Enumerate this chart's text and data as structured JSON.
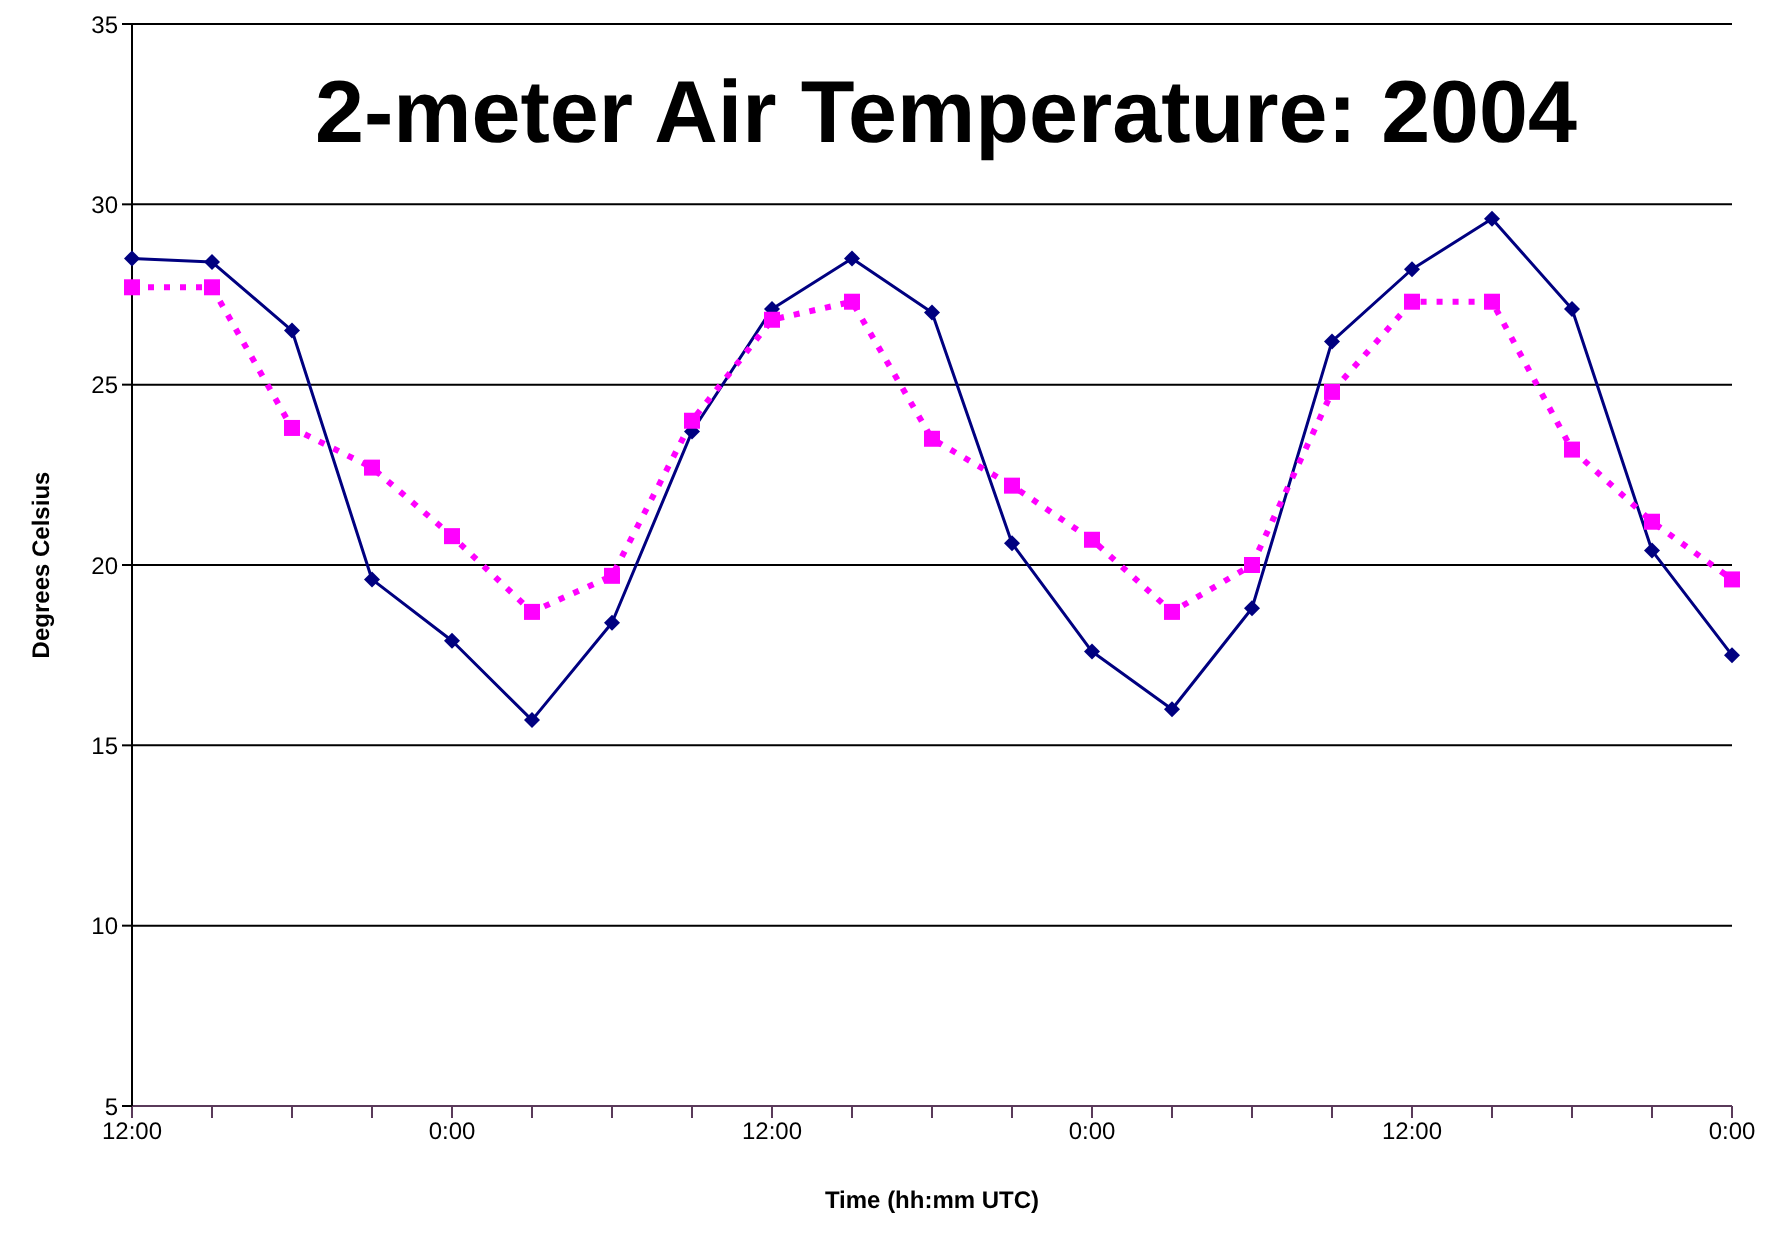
{
  "chart_data": {
    "type": "line",
    "title": "2-meter Air Temperature: 2004",
    "xlabel": "Time (hh:mm UTC)",
    "ylabel": "Degrees Celsius",
    "categories": [
      "12:00",
      null,
      null,
      null,
      "0:00",
      null,
      null,
      null,
      "12:00",
      null,
      null,
      null,
      "0:00",
      null,
      null,
      null,
      "12:00",
      null,
      null,
      null,
      "0:00"
    ],
    "series": [
      {
        "color": "#000080",
        "marker": "diamond",
        "line_style": "solid",
        "values": [
          28.5,
          28.4,
          26.5,
          19.6,
          17.9,
          15.7,
          18.4,
          23.7,
          27.1,
          28.5,
          27.0,
          20.6,
          17.6,
          16.0,
          18.8,
          26.2,
          28.2,
          29.6,
          27.1,
          20.4,
          17.5
        ]
      },
      {
        "color": "#ff00ff",
        "marker": "square",
        "line_style": "dotted",
        "values": [
          27.7,
          27.7,
          23.8,
          22.7,
          20.8,
          18.7,
          19.7,
          24.0,
          26.8,
          27.3,
          23.5,
          22.2,
          20.7,
          18.7,
          20.0,
          24.8,
          27.3,
          27.3,
          23.2,
          21.2,
          19.6
        ]
      }
    ],
    "ylim": [
      5,
      35
    ],
    "yticks": [
      5,
      10,
      15,
      20,
      25,
      30,
      35
    ],
    "grid": "y",
    "legend": false
  }
}
